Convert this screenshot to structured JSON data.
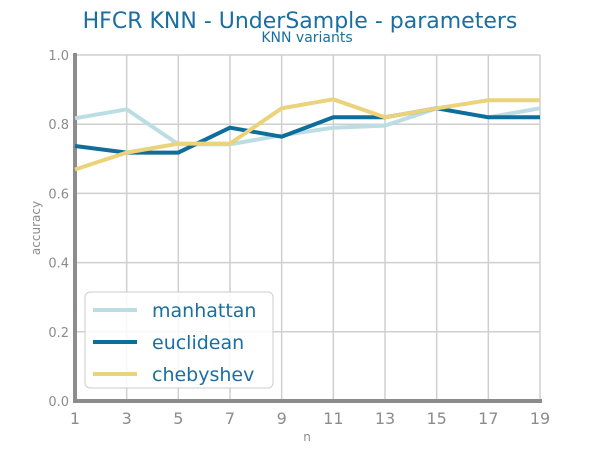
{
  "chart_data": {
    "type": "line",
    "title": "HFCR KNN - UnderSample - parameters",
    "subtitle": "KNN variants",
    "xlabel": "n",
    "ylabel": "accuracy",
    "x": [
      1,
      3,
      5,
      7,
      9,
      11,
      13,
      15,
      17,
      19
    ],
    "xticks": [
      "1",
      "3",
      "5",
      "7",
      "9",
      "11",
      "13",
      "15",
      "17",
      "19"
    ],
    "xlim": [
      1,
      19
    ],
    "yticks": [
      "0.0",
      "0.2",
      "0.4",
      "0.6",
      "0.8",
      "1.0"
    ],
    "ylim": [
      0,
      1
    ],
    "grid": true,
    "legend_position": "lower-left",
    "series": [
      {
        "name": "manhattan",
        "color": "#bcdde4",
        "values": [
          0.817,
          0.843,
          0.742,
          0.742,
          0.768,
          0.79,
          0.796,
          0.846,
          0.82,
          0.846
        ]
      },
      {
        "name": "euclidean",
        "color": "#0e6e9b",
        "values": [
          0.737,
          0.718,
          0.718,
          0.79,
          0.764,
          0.82,
          0.82,
          0.846,
          0.82,
          0.82
        ]
      },
      {
        "name": "chebyshev",
        "color": "#ebd37b",
        "values": [
          0.669,
          0.718,
          0.744,
          0.744,
          0.846,
          0.872,
          0.82,
          0.846,
          0.869,
          0.869
        ]
      }
    ],
    "colors": {
      "title": "#1a6fa0",
      "axis": "#8c8c8c",
      "grid": "#cfcfcf",
      "tick_text": "#8c8c8c",
      "legend_text": "#1a6fa0"
    }
  }
}
